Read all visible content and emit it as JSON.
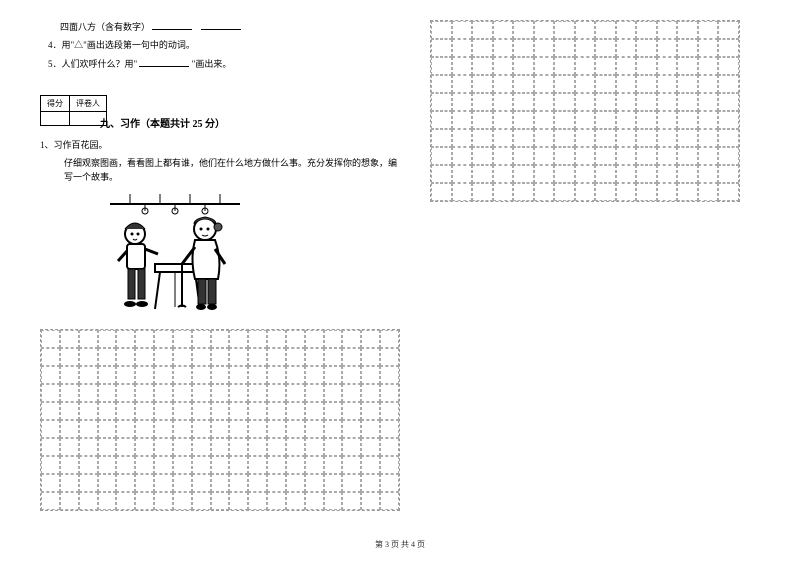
{
  "questions": {
    "q3_prefix": "四面八方（含有数字）",
    "q4": "4．用\"△\"画出选段第一句中的动词。",
    "q5_prefix": "5．人们欢呼什么？用\"",
    "q5_suffix": "\"画出来。"
  },
  "scorebox": {
    "col1": "得分",
    "col2": "评卷人"
  },
  "section": {
    "title": "九、习作（本题共计 25 分）"
  },
  "writing": {
    "intro1": "1、习作百花园。",
    "intro2": "仔细观察图画，看看图上都有谁，他们在什么地方做什么事。充分发挥你的想象，编写一个故事。"
  },
  "grid": {
    "left_cols": 19,
    "left_rows": 10,
    "right_cols": 15,
    "right_rows": 10
  },
  "footer": "第 3 页 共 4 页",
  "illustration": {
    "bg": "#ffffff",
    "line": "#000000",
    "fill_dark": "#333333"
  }
}
